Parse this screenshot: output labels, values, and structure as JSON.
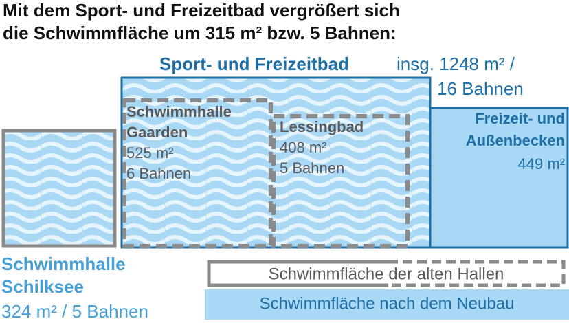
{
  "title": {
    "line1": "Mit dem Sport- und Freizeitbad vergrößert sich",
    "line2": "die Schwimmfläche um 315 m² bzw. 5 Bahnen:"
  },
  "sport_freizeitbad": {
    "name": "Sport- und Freizeitbad",
    "total_line1": "insg. 1248 m² /",
    "total_line2": "16 Bahnen"
  },
  "freizeit_aussenbecken": {
    "name_line1": "Freizeit- und",
    "name_line2": "Außenbecken",
    "area": "449 m²"
  },
  "gaarden": {
    "name_line1": "Schwimmhalle",
    "name_line2": "Gaarden",
    "area": "525 m²",
    "lanes": "6 Bahnen"
  },
  "lessingbad": {
    "name": "Lessingbad",
    "area": "408 m²",
    "lanes": "5 Bahnen"
  },
  "schilksee": {
    "name_line1": "Schwimmhalle",
    "name_line2": "Schilksee",
    "details": "324 m² / 5 Bahnen"
  },
  "legend": {
    "old": "Schwimmfläche der alten Hallen",
    "new": "Schwimmfläche nach dem Neubau"
  }
}
